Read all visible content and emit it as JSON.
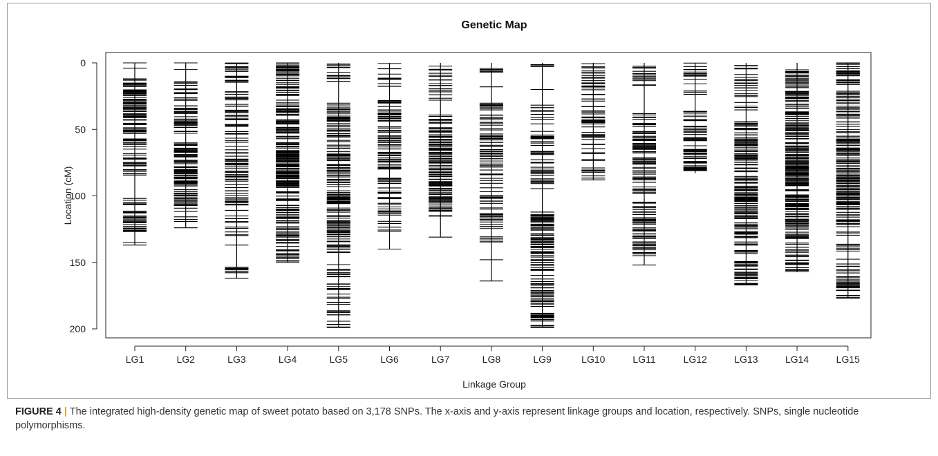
{
  "chart_data": {
    "type": "genetic_map",
    "title": "Genetic Map",
    "xlabel": "Linkage Group",
    "ylabel": "Location (cM)",
    "ylim": [
      0,
      205
    ],
    "y_reversed": true,
    "yticks": [
      0,
      50,
      100,
      150,
      200
    ],
    "grid": false,
    "groups": [
      {
        "name": "LG1",
        "length": 137,
        "dense": [
          [
            12,
            87,
            95
          ],
          [
            100,
            127,
            35
          ]
        ],
        "markers": [
          0,
          4,
          12,
          13,
          135,
          137
        ]
      },
      {
        "name": "LG2",
        "length": 124,
        "dense": [
          [
            14,
            55,
            40
          ],
          [
            60,
            112,
            85
          ],
          [
            115,
            120,
            4
          ]
        ],
        "markers": [
          0,
          5,
          124
        ]
      },
      {
        "name": "LG3",
        "length": 162,
        "dense": [
          [
            0,
            130,
            110
          ],
          [
            153,
            158,
            8
          ]
        ],
        "markers": [
          137,
          162
        ]
      },
      {
        "name": "LG4",
        "length": 150,
        "dense": [
          [
            0,
            150,
            180
          ],
          [
            60,
            93,
            60
          ]
        ],
        "markers": [
          0,
          150
        ]
      },
      {
        "name": "LG5",
        "length": 199,
        "dense": [
          [
            0,
            15,
            14
          ],
          [
            30,
            145,
            140
          ],
          [
            100,
            106,
            10
          ],
          [
            150,
            199,
            30
          ]
        ],
        "markers": [
          199
        ]
      },
      {
        "name": "LG6",
        "length": 140,
        "dense": [
          [
            0,
            20,
            10
          ],
          [
            28,
            80,
            60
          ],
          [
            85,
            130,
            30
          ]
        ],
        "markers": [
          140
        ]
      },
      {
        "name": "LG7",
        "length": 131,
        "dense": [
          [
            0,
            30,
            18
          ],
          [
            38,
            118,
            110
          ]
        ],
        "markers": [
          131
        ]
      },
      {
        "name": "LG8",
        "length": 164,
        "dense": [
          [
            0,
            10,
            6
          ],
          [
            30,
            135,
            85
          ]
        ],
        "markers": [
          18,
          148,
          164
        ]
      },
      {
        "name": "LG9",
        "length": 199,
        "dense": [
          [
            0,
            3,
            4
          ],
          [
            30,
            95,
            45
          ],
          [
            112,
            199,
            110
          ]
        ],
        "markers": [
          20,
          199
        ]
      },
      {
        "name": "LG10",
        "length": 88,
        "dense": [
          [
            0,
            88,
            50
          ],
          [
            35,
            46,
            14
          ]
        ],
        "markers": [
          88
        ]
      },
      {
        "name": "LG11",
        "length": 152,
        "dense": [
          [
            0,
            22,
            14
          ],
          [
            38,
            145,
            120
          ]
        ],
        "markers": [
          152
        ]
      },
      {
        "name": "LG12",
        "length": 83,
        "dense": [
          [
            0,
            30,
            14
          ],
          [
            36,
            83,
            55
          ]
        ],
        "markers": [
          65
        ]
      },
      {
        "name": "LG13",
        "length": 167,
        "dense": [
          [
            0,
            40,
            22
          ],
          [
            42,
            167,
            160
          ],
          [
            95,
            104,
            15
          ]
        ],
        "markers": [
          167
        ]
      },
      {
        "name": "LG14",
        "length": 157,
        "dense": [
          [
            5,
            157,
            190
          ],
          [
            60,
            110,
            60
          ]
        ],
        "markers": [
          154,
          157
        ]
      },
      {
        "name": "LG15",
        "length": 177,
        "dense": [
          [
            0,
            177,
            150
          ],
          [
            55,
            110,
            55
          ]
        ],
        "markers": [
          0,
          177
        ]
      }
    ]
  },
  "caption": {
    "label": "FIGURE 4",
    "separator": "|",
    "text": "The integrated high-density genetic map of sweet potato based on 3,178 SNPs. The x-axis and y-axis represent linkage groups and location, respectively. SNPs, single nucleotide polymorphisms."
  }
}
